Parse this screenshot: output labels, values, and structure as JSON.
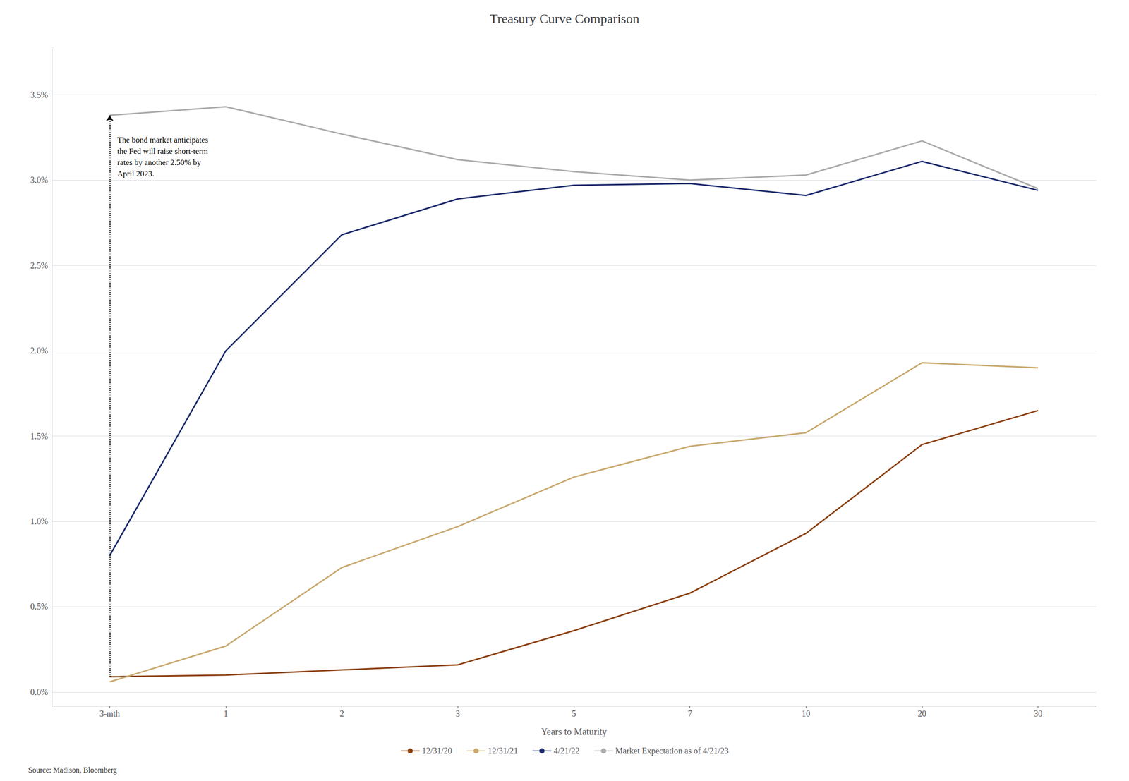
{
  "chart_data": {
    "type": "line",
    "title": "Treasury Curve Comparison",
    "xlabel": "Years to Maturity",
    "categories": [
      "3-mth",
      "1",
      "2",
      "3",
      "5",
      "7",
      "10",
      "20",
      "30"
    ],
    "series": [
      {
        "name": "12/31/20",
        "color": "#8B4010",
        "values": [
          0.09,
          0.1,
          0.13,
          0.16,
          0.36,
          0.58,
          0.93,
          1.45,
          1.65
        ]
      },
      {
        "name": "12/31/21",
        "color": "#C8A96E",
        "values": [
          0.06,
          0.27,
          0.73,
          0.97,
          1.26,
          1.44,
          1.52,
          1.93,
          1.9
        ]
      },
      {
        "name": "4/21/22",
        "color": "#1B2A6B",
        "values": [
          0.8,
          2.0,
          2.68,
          2.89,
          2.97,
          2.98,
          2.91,
          3.11,
          2.94
        ]
      },
      {
        "name": "Market Expectation as of 4/21/23",
        "color": "#AAAAAA",
        "values": [
          3.38,
          3.43,
          3.27,
          3.12,
          3.05,
          3.0,
          3.03,
          3.23,
          2.95
        ]
      }
    ],
    "ylim": [
      -0.08,
      3.78
    ],
    "yticks": [
      {
        "value": 0.0,
        "label": "0.0%"
      },
      {
        "value": 0.5,
        "label": "0.5%"
      },
      {
        "value": 1.0,
        "label": "1.0%"
      },
      {
        "value": 1.5,
        "label": "1.5%"
      },
      {
        "value": 2.0,
        "label": "2.0%"
      },
      {
        "value": 2.5,
        "label": "2.5%"
      },
      {
        "value": 3.0,
        "label": "3.0%"
      },
      {
        "value": 3.5,
        "label": "3.5%"
      }
    ],
    "grid": true,
    "legend": "bottom",
    "annotations": [
      {
        "text": "The bond market anticipates\nthe Fed will raise short-term\nrates by another 2.50% by\nApril 2023.",
        "x": "3-mth",
        "y": 3.38
      }
    ],
    "source": "Source: Madison, Bloomberg"
  }
}
